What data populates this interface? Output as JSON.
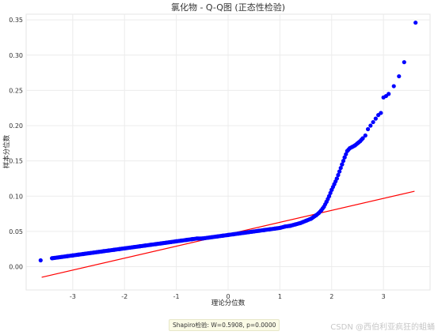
{
  "chart_data": {
    "type": "scatter",
    "title": "氯化物 - Q-Q图 (正态性检验)",
    "xlabel": "理论分位数",
    "ylabel": "样本分位数",
    "xlim": [
      -3.9,
      3.9
    ],
    "ylim": [
      -0.033,
      0.358
    ],
    "x_ticks": [
      -3,
      -2,
      -1,
      0,
      1,
      2,
      3
    ],
    "y_ticks": [
      0.0,
      0.05,
      0.1,
      0.15,
      0.2,
      0.25,
      0.3,
      0.35
    ],
    "x_tick_labels": [
      "-3",
      "-2",
      "-1",
      "0",
      "1",
      "2",
      "3"
    ],
    "y_tick_labels": [
      "0.00",
      "0.05",
      "0.10",
      "0.15",
      "0.20",
      "0.25",
      "0.30",
      "0.35"
    ],
    "grid": true,
    "series": [
      {
        "kind": "points",
        "color": "#0000ff",
        "x": [
          -3.62,
          -3.4,
          -3.3,
          -3.2,
          -3.1,
          -3.0,
          -2.9,
          -2.8,
          -2.7,
          -2.6,
          -2.5,
          -2.4,
          -2.3,
          -2.2,
          -2.1,
          -2.0,
          -1.9,
          -1.8,
          -1.7,
          -1.6,
          -1.5,
          -1.4,
          -1.3,
          -1.2,
          -1.1,
          -1.0,
          -0.9,
          -0.8,
          -0.7,
          -0.6,
          -0.5,
          -0.4,
          -0.3,
          -0.2,
          -0.1,
          0.0,
          0.1,
          0.2,
          0.3,
          0.4,
          0.5,
          0.6,
          0.7,
          0.8,
          0.9,
          1.0,
          1.1,
          1.2,
          1.3,
          1.4,
          1.5,
          1.6,
          1.7,
          1.75,
          1.8,
          1.85,
          1.9,
          1.95,
          2.0,
          2.05,
          2.1,
          2.15,
          2.2,
          2.25,
          2.3,
          2.35,
          2.4,
          2.45,
          2.5,
          2.55,
          2.6,
          2.65,
          2.7,
          2.75,
          2.8,
          2.85,
          2.9,
          2.95,
          3.0,
          3.05,
          3.1,
          3.2,
          3.3,
          3.4,
          3.62
        ],
        "y": [
          0.009,
          0.012,
          0.013,
          0.014,
          0.015,
          0.016,
          0.017,
          0.018,
          0.019,
          0.02,
          0.021,
          0.022,
          0.023,
          0.024,
          0.025,
          0.026,
          0.027,
          0.028,
          0.029,
          0.03,
          0.031,
          0.032,
          0.033,
          0.034,
          0.035,
          0.036,
          0.037,
          0.038,
          0.039,
          0.04,
          0.04,
          0.041,
          0.042,
          0.043,
          0.044,
          0.045,
          0.046,
          0.047,
          0.048,
          0.049,
          0.05,
          0.051,
          0.052,
          0.053,
          0.054,
          0.055,
          0.057,
          0.058,
          0.06,
          0.062,
          0.065,
          0.068,
          0.073,
          0.076,
          0.08,
          0.085,
          0.092,
          0.1,
          0.109,
          0.117,
          0.125,
          0.135,
          0.145,
          0.155,
          0.164,
          0.168,
          0.17,
          0.172,
          0.175,
          0.178,
          0.182,
          0.186,
          0.195,
          0.2,
          0.205,
          0.21,
          0.215,
          0.218,
          0.24,
          0.242,
          0.245,
          0.256,
          0.27,
          0.29,
          0.346
        ]
      },
      {
        "kind": "reference-line",
        "color": "#ff0000",
        "x": [
          -3.6,
          3.6
        ],
        "y": [
          -0.015,
          0.107
        ]
      }
    ]
  },
  "annotation": {
    "shapiro": "Shapiro检验: W=0.5908, p=0.0000"
  },
  "watermark": "CSDN @西伯利亚疯狂的蛆蛹"
}
